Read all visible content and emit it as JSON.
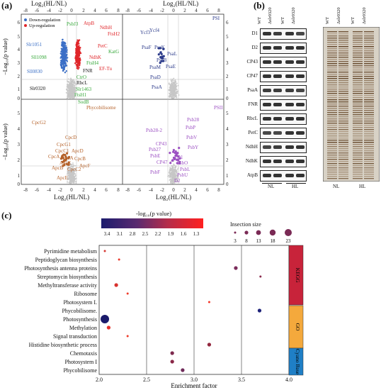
{
  "panel_a": {
    "label": "(a)",
    "top_axis_label": "Log₂(HL/NL)",
    "bottom_axis_label": "Log₂(HL/NL)",
    "y_axis_label": "−Log₁₀(p value)",
    "x_ticks": [
      "−8",
      "−6",
      "−4",
      "−2",
      "0",
      "2",
      "4",
      "6",
      "8"
    ],
    "y_ticks_top": [
      "0",
      "1",
      "2",
      "3",
      "4",
      "5",
      "6"
    ],
    "y_ticks_bottom": [
      "0",
      "1",
      "2",
      "3",
      "4",
      "5"
    ],
    "legend": {
      "down": "Down-regulation",
      "up": "Up-regulation"
    },
    "q1_labels": {
      "blue": [
        "Slr1051",
        "Sll1098",
        "Sll0830"
      ],
      "green": [
        "PsbJ3",
        "KatG",
        "FtsH4",
        "CtrO",
        "Slr1463",
        "FtsH1",
        "SodB"
      ],
      "red": [
        "AtpB",
        "NdhH",
        "FtsH2",
        "PetC",
        "NdhK",
        "EF-Tu"
      ],
      "black": [
        "FNR",
        "RbcL",
        "Slr0320"
      ]
    },
    "q2_title": "PSI",
    "q2_labels": [
      "Ycf3",
      "Ycf4",
      "PsaF",
      "PsaK",
      "PsaL",
      "PsaB",
      "PsaM",
      "PsaE",
      "PsaD",
      "PsaA"
    ],
    "q3_title": "Phycobilisome",
    "q3_labels": [
      "CpcG2",
      "CpcD",
      "CpcG1",
      "CpcC1",
      "ApcD",
      "ApcA",
      "CpcA",
      "ApcC",
      "CpcB",
      "ApcF",
      "ApcB",
      "CpcC2",
      "ApcE"
    ],
    "q4_title": "PSII",
    "q4_labels": [
      "Psb28",
      "Psb28-2",
      "PsbP",
      "PsbV",
      "CP43",
      "PsbY",
      "Psb27",
      "PsbE",
      "D1",
      "CP47",
      "PsbO",
      "PsbL",
      "PsbF",
      "PsbU",
      "D2"
    ]
  },
  "panel_b": {
    "label": "(b)",
    "col_headers": [
      "WT",
      "Δslr0320",
      "WT",
      "Δslr0320"
    ],
    "proteins": [
      "D1",
      "D2",
      "CP43",
      "CP47",
      "PsaA",
      "FNR",
      "RbcL",
      "PetC",
      "NdhH",
      "NdhK",
      "AtpB"
    ],
    "condition_labels": [
      "NL",
      "HL"
    ]
  },
  "panel_c": {
    "label": "(c)",
    "colorbar_title": "-log₁₀(p value)",
    "colorbar_ticks": [
      "3.4",
      "3.1",
      "2.8",
      "2.5",
      "2.2",
      "1.9",
      "1.6",
      "1.3"
    ],
    "size_title": "Insection size",
    "size_ticks": [
      "3",
      "8",
      "13",
      "18",
      "23"
    ],
    "x_label": "Enrichment factor",
    "x_ticks": [
      "2.0",
      "2.5",
      "3.0",
      "3.5",
      "4.0"
    ],
    "categories": [
      "KEGG",
      "GO",
      "Cyano Base"
    ],
    "category_colors": [
      "#c8233a",
      "#f4a93c",
      "#1f7fc6"
    ],
    "terms": [
      "Pyrimidine metabolism",
      "Peptidoglycan biosynthesis",
      "Photosynthesis  antenna proteins",
      "Streptomycin biosynthesis",
      "Methyltransferase activity",
      "Ribosome",
      "Photosystem I.",
      "Phycobilisome.",
      "Photosynthesis",
      "Methylation",
      "Signal transduction",
      "Histidine biosynthetic process",
      "Chemotaxis",
      "Photosystem I",
      "Phycobilisome"
    ]
  },
  "chart_data": {
    "type": "scatter",
    "xlabel": "Enrichment factor",
    "xlim": [
      2.0,
      4.0
    ],
    "points": [
      {
        "term": "Pyrimidine metabolism",
        "x": 2.06,
        "size": 3,
        "neglog10p": 1.6,
        "color": "#d63a35"
      },
      {
        "term": "Peptidoglycan biosynthesis",
        "x": 2.21,
        "size": 3,
        "neglog10p": 1.5,
        "color": "#ea3b2e"
      },
      {
        "term": "Photosynthesis  antenna proteins",
        "x": 3.44,
        "size": 8,
        "neglog10p": 2.2,
        "color": "#7b2c5b"
      },
      {
        "term": "Streptomycin biosynthesis",
        "x": 3.7,
        "size": 3,
        "neglog10p": 2.1,
        "color": "#8a2a4c"
      },
      {
        "term": "Methyltransferase activity",
        "x": 2.18,
        "size": 8,
        "neglog10p": 1.7,
        "color": "#d8322e"
      },
      {
        "term": "Ribosome",
        "x": 2.3,
        "size": 3,
        "neglog10p": 1.4,
        "color": "#ef3c2a"
      },
      {
        "term": "Photosystem I.",
        "x": 3.16,
        "size": 3,
        "neglog10p": 1.3,
        "color": "#f4372a"
      },
      {
        "term": "Phycobilisome.",
        "x": 3.69,
        "size": 8,
        "neglog10p": 3.3,
        "color": "#1f237a"
      },
      {
        "term": "Photosynthesis",
        "x": 2.06,
        "size": 23,
        "neglog10p": 3.4,
        "color": "#1a1b6b"
      },
      {
        "term": "Methylation",
        "x": 2.1,
        "size": 8,
        "neglog10p": 1.6,
        "color": "#e5332c"
      },
      {
        "term": "Signal transduction",
        "x": 2.3,
        "size": 3,
        "neglog10p": 1.4,
        "color": "#ef3c2a"
      },
      {
        "term": "Histidine biosynthetic process",
        "x": 3.16,
        "size": 8,
        "neglog10p": 2.3,
        "color": "#93283f"
      },
      {
        "term": "Chemotaxis",
        "x": 2.77,
        "size": 8,
        "neglog10p": 2.3,
        "color": "#7e2a4e"
      },
      {
        "term": "Photosystem I",
        "x": 2.77,
        "size": 8,
        "neglog10p": 2.3,
        "color": "#8a2848"
      },
      {
        "term": "Phycobilisome",
        "x": 2.88,
        "size": 8,
        "neglog10p": 2.5,
        "color": "#6f2b5a"
      }
    ]
  }
}
